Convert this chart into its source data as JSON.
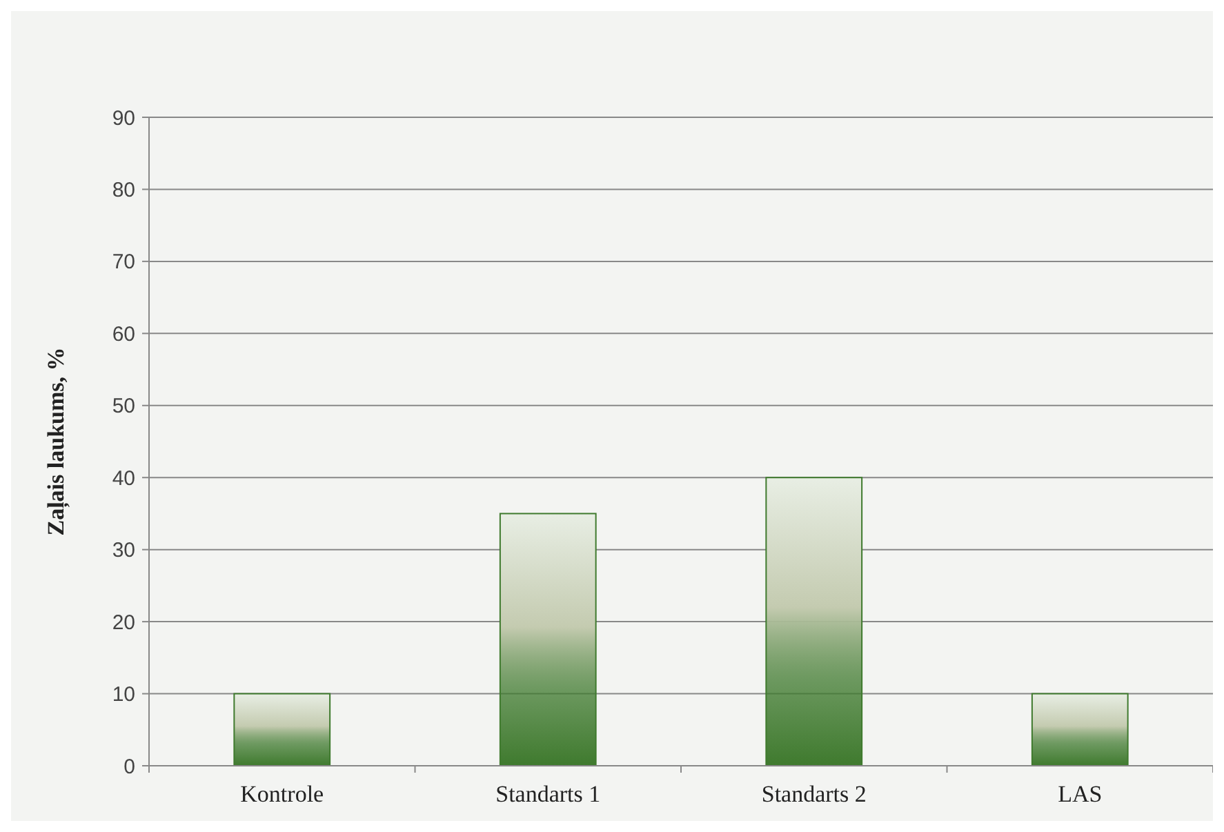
{
  "chart_data": {
    "type": "bar",
    "ylabel": "Zaļais laukums, %",
    "categories": [
      "Kontrole",
      "Standarts 1",
      "Standarts 2",
      "LAS"
    ],
    "values": [
      10,
      35,
      40,
      10
    ],
    "color": "#3f7a2e",
    "ylim": [
      0,
      90
    ],
    "yticks": [
      0,
      10,
      20,
      30,
      40,
      50,
      60,
      70,
      80,
      90
    ],
    "grid": "y"
  }
}
